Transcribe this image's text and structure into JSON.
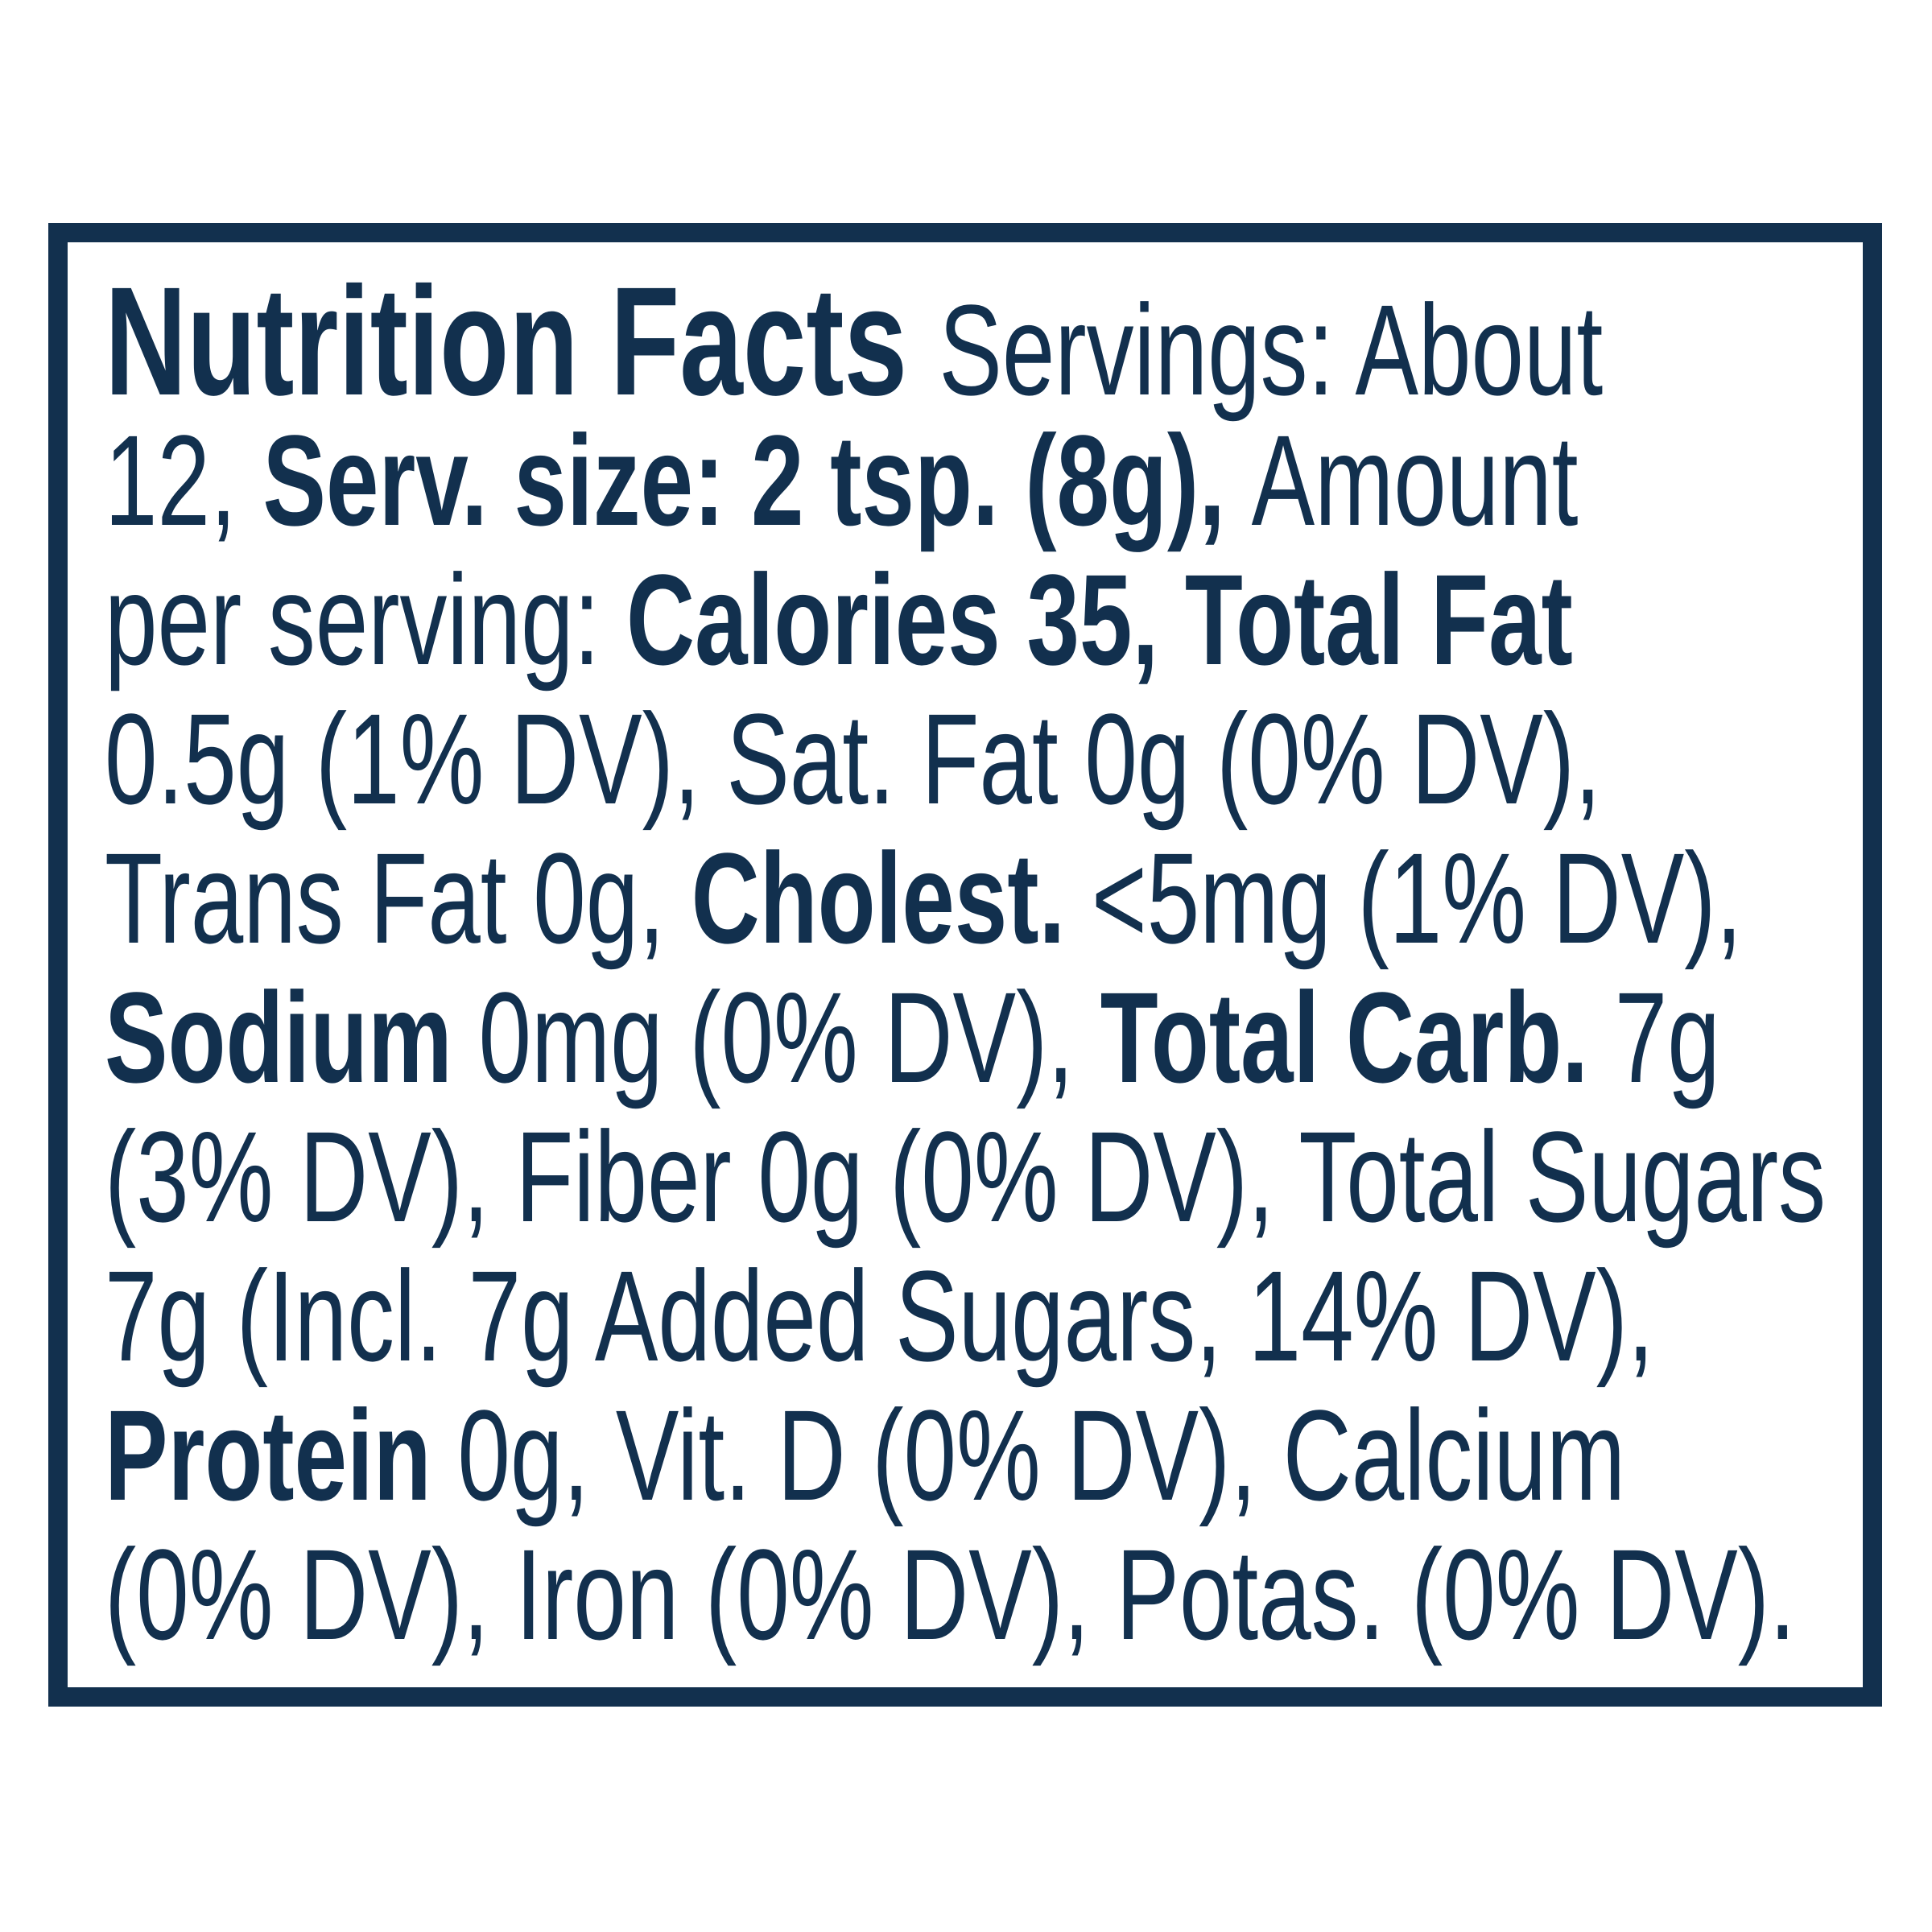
{
  "colors": {
    "text": "#12304e",
    "border": "#12304e",
    "background": "#ffffff"
  },
  "nutrition_label": {
    "title": "Nutrition Facts",
    "lines": [
      {
        "segments": [
          {
            "text": "Nutrition Facts ",
            "style": "title"
          },
          {
            "text": "Servings: About",
            "style": "regular"
          }
        ]
      },
      {
        "segments": [
          {
            "text": "12, ",
            "style": "regular"
          },
          {
            "text": "Serv. size: 2 tsp. (8g), ",
            "style": "bold"
          },
          {
            "text": "Amount",
            "style": "regular"
          }
        ]
      },
      {
        "segments": [
          {
            "text": "per serving: ",
            "style": "regular"
          },
          {
            "text": "Calories 35, Total Fat",
            "style": "bold"
          }
        ]
      },
      {
        "segments": [
          {
            "text": "0.5g (1% DV), Sat. Fat 0g (0% DV),",
            "style": "regular"
          }
        ]
      },
      {
        "segments": [
          {
            "text": "Trans Fat 0g, ",
            "style": "regular"
          },
          {
            "text": "Cholest. ",
            "style": "bold"
          },
          {
            "text": "<5mg (1% DV),",
            "style": "regular"
          }
        ]
      },
      {
        "segments": [
          {
            "text": "Sodium ",
            "style": "bold"
          },
          {
            "text": "0mg (0% DV), ",
            "style": "regular"
          },
          {
            "text": "Total Carb. ",
            "style": "bold"
          },
          {
            "text": "7g",
            "style": "regular"
          }
        ]
      },
      {
        "segments": [
          {
            "text": "(3% DV), Fiber 0g (0% DV), Total Sugars",
            "style": "regular"
          }
        ]
      },
      {
        "segments": [
          {
            "text": "7g (Incl. 7g Added Sugars, 14% DV),",
            "style": "regular"
          }
        ]
      },
      {
        "segments": [
          {
            "text": "Protein ",
            "style": "bold"
          },
          {
            "text": "0g, Vit. D (0% DV), Calcium",
            "style": "regular"
          }
        ]
      },
      {
        "segments": [
          {
            "text": "(0% DV), Iron (0% DV), Potas. (0% DV).",
            "style": "regular"
          }
        ]
      }
    ],
    "facts": {
      "servings": "About 12",
      "serving_size": "2 tsp. (8g)",
      "calories": "35",
      "total_fat": "0.5g (1% DV)",
      "saturated_fat": "0g (0% DV)",
      "trans_fat": "0g",
      "cholesterol": "<5mg (1% DV)",
      "sodium": "0mg (0% DV)",
      "total_carbohydrate": "7g (3% DV)",
      "fiber": "0g (0% DV)",
      "total_sugars": "7g",
      "added_sugars": "Incl. 7g Added Sugars (14% DV)",
      "protein": "0g",
      "vitamin_d": "0% DV",
      "calcium": "0% DV",
      "iron": "0% DV",
      "potassium": "0% DV"
    }
  }
}
